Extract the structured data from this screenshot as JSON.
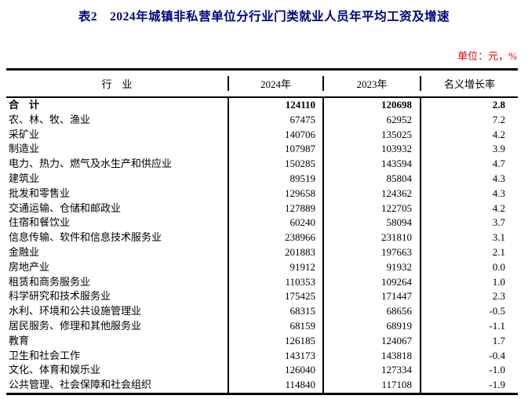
{
  "page": {
    "title": "表2　2024年城镇非私营单位分行业门类就业人员年平均工资及增速",
    "unit_note": "单位：元，%"
  },
  "colors": {
    "title": "#00007f",
    "unit_note": "#e60000",
    "border": "#000000",
    "text": "#000000"
  },
  "table": {
    "columns": [
      "行　业",
      "2024年",
      "2023年",
      "名义增长率"
    ],
    "rows": [
      {
        "industry": "合　计",
        "y2024": "124110",
        "y2023": "120698",
        "growth": "2.8",
        "bold": true
      },
      {
        "industry": "农、林、牧、渔业",
        "y2024": "67475",
        "y2023": "62952",
        "growth": "7.2"
      },
      {
        "industry": "采矿业",
        "y2024": "140706",
        "y2023": "135025",
        "growth": "4.2"
      },
      {
        "industry": "制造业",
        "y2024": "107987",
        "y2023": "103932",
        "growth": "3.9"
      },
      {
        "industry": "电力、热力、燃气及水生产和供应业",
        "y2024": "150285",
        "y2023": "143594",
        "growth": "4.7"
      },
      {
        "industry": "建筑业",
        "y2024": "89519",
        "y2023": "85804",
        "growth": "4.3"
      },
      {
        "industry": "批发和零售业",
        "y2024": "129658",
        "y2023": "124362",
        "growth": "4.3"
      },
      {
        "industry": "交通运输、仓储和邮政业",
        "y2024": "127889",
        "y2023": "122705",
        "growth": "4.2"
      },
      {
        "industry": "住宿和餐饮业",
        "y2024": "60240",
        "y2023": "58094",
        "growth": "3.7"
      },
      {
        "industry": "信息传输、软件和信息技术服务业",
        "y2024": "238966",
        "y2023": "231810",
        "growth": "3.1"
      },
      {
        "industry": "金融业",
        "y2024": "201883",
        "y2023": "197663",
        "growth": "2.1"
      },
      {
        "industry": "房地产业",
        "y2024": "91912",
        "y2023": "91932",
        "growth": "0.0"
      },
      {
        "industry": "租赁和商务服务业",
        "y2024": "110353",
        "y2023": "109264",
        "growth": "1.0"
      },
      {
        "industry": "科学研究和技术服务业",
        "y2024": "175425",
        "y2023": "171447",
        "growth": "2.3"
      },
      {
        "industry": "水利、环境和公共设施管理业",
        "y2024": "68315",
        "y2023": "68656",
        "growth": "-0.5"
      },
      {
        "industry": "居民服务、修理和其他服务业",
        "y2024": "68159",
        "y2023": "68919",
        "growth": "-1.1"
      },
      {
        "industry": "教育",
        "y2024": "126185",
        "y2023": "124067",
        "growth": "1.7"
      },
      {
        "industry": "卫生和社会工作",
        "y2024": "143173",
        "y2023": "143818",
        "growth": "-0.4"
      },
      {
        "industry": "文化、体育和娱乐业",
        "y2024": "126040",
        "y2023": "127334",
        "growth": "-1.0"
      },
      {
        "industry": "公共管理、社会保障和社会组织",
        "y2024": "114840",
        "y2023": "117108",
        "growth": "-1.9"
      }
    ]
  }
}
